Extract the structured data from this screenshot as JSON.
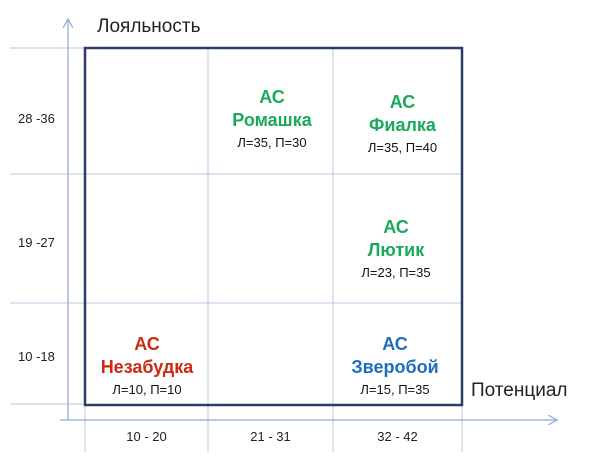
{
  "axes": {
    "y_title": "Лояльность",
    "x_title": "Потенциал",
    "y_ticks": [
      "28 -36",
      "19 -27",
      "10 -18"
    ],
    "x_ticks": [
      "10 - 20",
      "21 - 31",
      "32 - 42"
    ]
  },
  "colors": {
    "green": "#1aaa5a",
    "red": "#cc2a12",
    "blue": "#1c6fbf",
    "frame": "#2b3f66",
    "grid": "#b9c9e4"
  },
  "cells": [
    {
      "id": "romashka",
      "line1": "АС",
      "line2": "Ромашка",
      "values": "Л=35, П=30",
      "color": "green"
    },
    {
      "id": "fialka",
      "line1": "АС",
      "line2": "Фиалка",
      "values": "Л=35, П=40",
      "color": "green"
    },
    {
      "id": "lyutik",
      "line1": "АС",
      "line2": "Лютик",
      "values": "Л=23, П=35",
      "color": "green"
    },
    {
      "id": "nezabudka",
      "line1": "АС",
      "line2": "Незабудка",
      "values": "Л=10, П=10",
      "color": "red"
    },
    {
      "id": "zveroboy",
      "line1": "АС",
      "line2": "Зверобой",
      "values": "Л=15, П=35",
      "color": "blue"
    }
  ]
}
